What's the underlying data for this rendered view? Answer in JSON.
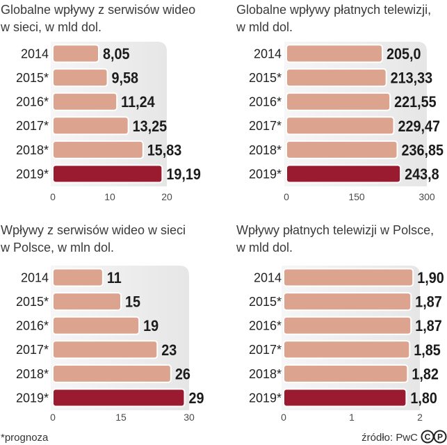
{
  "chart_data": [
    {
      "type": "bar",
      "orientation": "horizontal",
      "title_lines": [
        "Globalne wpływy z serwisów wideo",
        "w sieci, w mld dol."
      ],
      "categories": [
        "2014",
        "2015*",
        "2016*",
        "2017*",
        "2018*",
        "2019*"
      ],
      "values": [
        8.05,
        9.58,
        11.24,
        13.25,
        15.83,
        19.19
      ],
      "value_labels": [
        "8,05",
        "9,58",
        "11,24",
        "13,25",
        "15,83",
        "19,19"
      ],
      "xlim": [
        0,
        20
      ],
      "ticks": [
        0,
        10,
        20
      ],
      "grid": false,
      "bar_colors": [
        "#dca38e",
        "#dca38e",
        "#dca38e",
        "#dca38e",
        "#dca38e",
        "#9a1b2f"
      ]
    },
    {
      "type": "bar",
      "orientation": "horizontal",
      "title_lines": [
        "Globalne wpływy płatnych telewizji,",
        "w mld dol."
      ],
      "categories": [
        "2014",
        "2015*",
        "2016*",
        "2017*",
        "2018*",
        "2019*"
      ],
      "values": [
        205.0,
        213.33,
        221.55,
        229.47,
        236.85,
        243.8
      ],
      "value_labels": [
        "205,0",
        "213,33",
        "221,55",
        "229,47",
        "236,85",
        "243,8"
      ],
      "xlim": [
        0,
        300
      ],
      "ticks": [
        0,
        150,
        300
      ],
      "grid": false,
      "bar_colors": [
        "#dca38e",
        "#dca38e",
        "#dca38e",
        "#dca38e",
        "#dca38e",
        "#9a1b2f"
      ]
    },
    {
      "type": "bar",
      "orientation": "horizontal",
      "title_lines": [
        "Wpływy z serwisów wideo w sieci",
        "w Polsce, w mln dol."
      ],
      "categories": [
        "2014",
        "2015*",
        "2016*",
        "2017*",
        "2018*",
        "2019*"
      ],
      "values": [
        11,
        15,
        19,
        23,
        26,
        29
      ],
      "value_labels": [
        "11",
        "15",
        "19",
        "23",
        "26",
        "29"
      ],
      "xlim": [
        0,
        30
      ],
      "ticks": [
        0,
        15,
        30
      ],
      "grid": false,
      "bar_colors": [
        "#dca38e",
        "#dca38e",
        "#dca38e",
        "#dca38e",
        "#dca38e",
        "#9a1b2f"
      ]
    },
    {
      "type": "bar",
      "orientation": "horizontal",
      "title_lines": [
        "Wpływy płatnych telewizji w Polsce,",
        "w mld dol."
      ],
      "categories": [
        "2014",
        "2015*",
        "2016*",
        "2017*",
        "2018*",
        "2019*"
      ],
      "values": [
        1.9,
        1.87,
        1.87,
        1.85,
        1.82,
        1.8
      ],
      "value_labels": [
        "1,90",
        "1,87",
        "1,87",
        "1,85",
        "1,82",
        "1,80"
      ],
      "xlim": [
        0,
        2
      ],
      "ticks": [
        0,
        1,
        2
      ],
      "grid": false,
      "bar_colors": [
        "#dca38e",
        "#dca38e",
        "#dca38e",
        "#dca38e",
        "#dca38e",
        "#9a1b2f"
      ]
    }
  ],
  "footer": {
    "note": "*prognoza",
    "source": "źródło: PwC",
    "logo_letters": [
      "C",
      "P"
    ]
  }
}
